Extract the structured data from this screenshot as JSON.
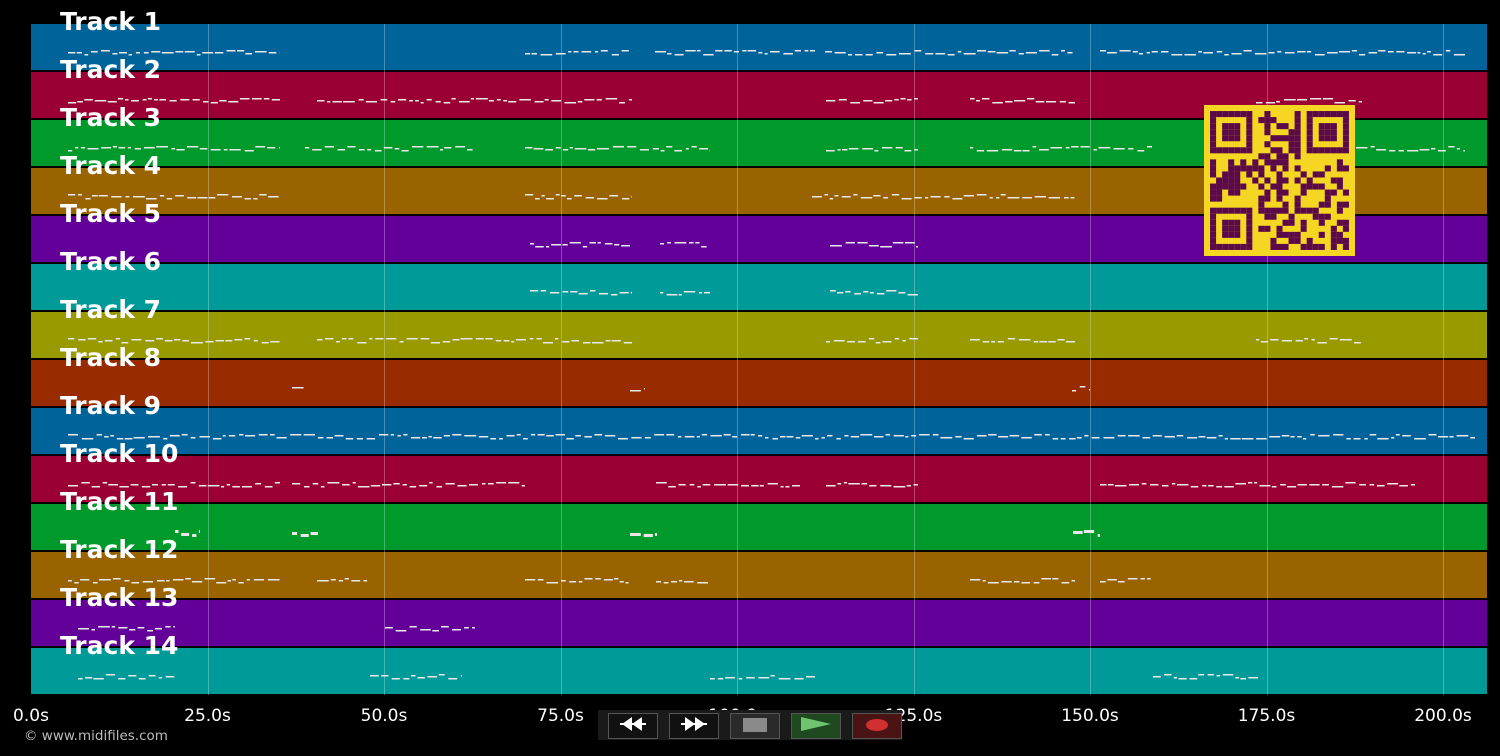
{
  "tracks": [
    {
      "label": "Track 1",
      "color": "#00649a"
    },
    {
      "label": "Track 2",
      "color": "#9a0033"
    },
    {
      "label": "Track 3",
      "color": "#00992b"
    },
    {
      "label": "Track 4",
      "color": "#996400"
    },
    {
      "label": "Track 5",
      "color": "#64009a"
    },
    {
      "label": "Track 6",
      "color": "#009a99"
    },
    {
      "label": "Track 7",
      "color": "#999900"
    },
    {
      "label": "Track 8",
      "color": "#992b00"
    },
    {
      "label": "Track 9",
      "color": "#00649a"
    },
    {
      "label": "Track 10",
      "color": "#9a0033"
    },
    {
      "label": "Track 11",
      "color": "#00992b"
    },
    {
      "label": "Track 12",
      "color": "#996400"
    },
    {
      "label": "Track 13",
      "color": "#64009a"
    },
    {
      "label": "Track 14",
      "color": "#009a99"
    }
  ],
  "timeline": {
    "ticks": [
      "0.0s",
      "25.0s",
      "50.0s",
      "75.0s",
      "100.0s",
      "125.0s",
      "150.0s",
      "175.0s",
      "200.0s"
    ]
  },
  "transport": {
    "rewind_icon": "rewind-icon",
    "forward_icon": "fast-forward-icon",
    "stop_icon": "stop-icon",
    "play_icon": "play-icon",
    "record_icon": "record-icon",
    "colors": {
      "stop": "#8a8a8a",
      "play": "#6fc46f",
      "record": "#d03030"
    }
  },
  "footer": {
    "copyright": "© www.midifiles.com"
  },
  "qr": {
    "fg": "#5a0a4a",
    "bg": "#f5d622"
  }
}
